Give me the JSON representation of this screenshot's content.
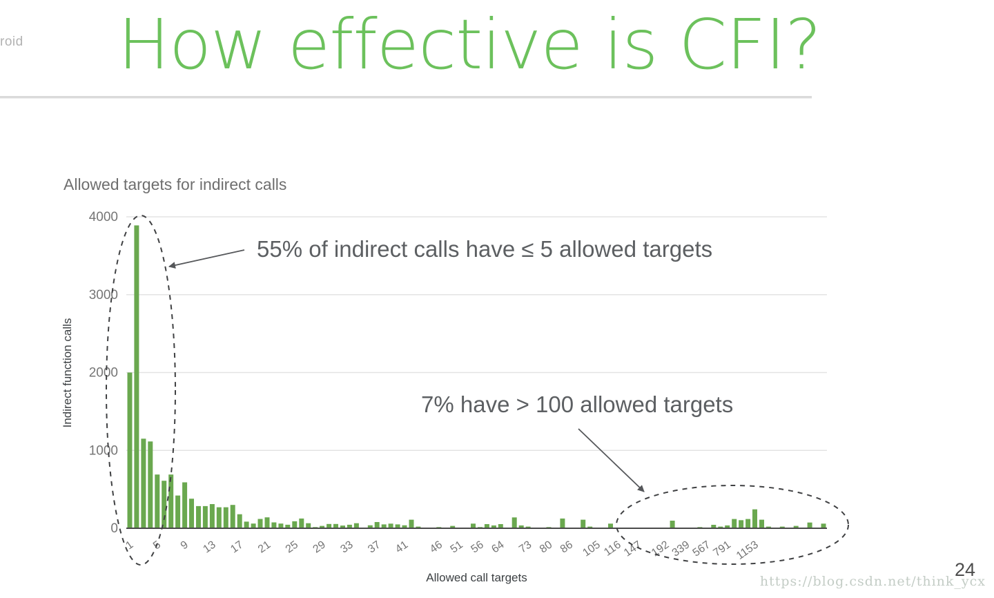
{
  "slide": {
    "logo_fragment": "roid",
    "title": "How effective is CFI?",
    "page_number": "24",
    "watermark": "https://blog.csdn.net/think_ycx"
  },
  "annotations": {
    "left_note": "55% of indirect calls have ≤ 5 allowed targets",
    "right_note": "7% have > 100 allowed targets"
  },
  "colors": {
    "title_green": "#6cc15c",
    "bar_green": "#6aa84f",
    "gridline": "#e3e3e3",
    "axis_line": "#494949",
    "tick_text": "#757575",
    "annotation_text": "#5c5f62",
    "ellipse_stroke": "#3f4042"
  },
  "chart_data": {
    "type": "bar",
    "title": "Allowed targets for indirect calls",
    "xlabel": "Allowed call targets",
    "ylabel": "Indirect function calls",
    "ylim": [
      0,
      4000
    ],
    "y_ticks": [
      0,
      1000,
      2000,
      3000,
      4000
    ],
    "grid": true,
    "legend": "none",
    "bar_color": "#6aa84f",
    "x_ticks": [
      {
        "label": "1",
        "slot": 0
      },
      {
        "label": "5",
        "slot": 4
      },
      {
        "label": "9",
        "slot": 8
      },
      {
        "label": "13",
        "slot": 12
      },
      {
        "label": "17",
        "slot": 16
      },
      {
        "label": "21",
        "slot": 20
      },
      {
        "label": "25",
        "slot": 24
      },
      {
        "label": "29",
        "slot": 28
      },
      {
        "label": "33",
        "slot": 32
      },
      {
        "label": "37",
        "slot": 36
      },
      {
        "label": "41",
        "slot": 40
      },
      {
        "label": "46",
        "slot": 45
      },
      {
        "label": "51",
        "slot": 48
      },
      {
        "label": "56",
        "slot": 51
      },
      {
        "label": "64",
        "slot": 54
      },
      {
        "label": "73",
        "slot": 58
      },
      {
        "label": "80",
        "slot": 61
      },
      {
        "label": "86",
        "slot": 64
      },
      {
        "label": "105",
        "slot": 68
      },
      {
        "label": "116",
        "slot": 71
      },
      {
        "label": "147",
        "slot": 74
      },
      {
        "label": "192",
        "slot": 78
      },
      {
        "label": "339",
        "slot": 81
      },
      {
        "label": "567",
        "slot": 84
      },
      {
        "label": "791",
        "slot": 87
      },
      {
        "label": "1153",
        "slot": 91
      }
    ],
    "values": [
      2000,
      3890,
      1150,
      1115,
      690,
      610,
      690,
      420,
      590,
      380,
      285,
      285,
      310,
      270,
      270,
      300,
      180,
      85,
      60,
      120,
      140,
      75,
      60,
      45,
      90,
      125,
      65,
      15,
      30,
      55,
      55,
      35,
      45,
      65,
      0,
      38,
      80,
      50,
      59,
      50,
      38,
      110,
      21,
      0,
      0,
      15,
      0,
      30,
      0,
      0,
      59,
      15,
      53,
      36,
      53,
      9,
      139,
      36,
      21,
      0,
      0,
      15,
      0,
      125,
      0,
      0,
      110,
      21,
      0,
      0,
      59,
      0,
      0,
      0,
      0,
      0,
      0,
      0,
      0,
      98,
      0,
      0,
      0,
      15,
      9,
      44,
      21,
      36,
      119,
      104,
      119,
      243,
      110,
      21,
      0,
      21,
      9,
      30,
      0,
      74,
      0,
      59
    ]
  }
}
